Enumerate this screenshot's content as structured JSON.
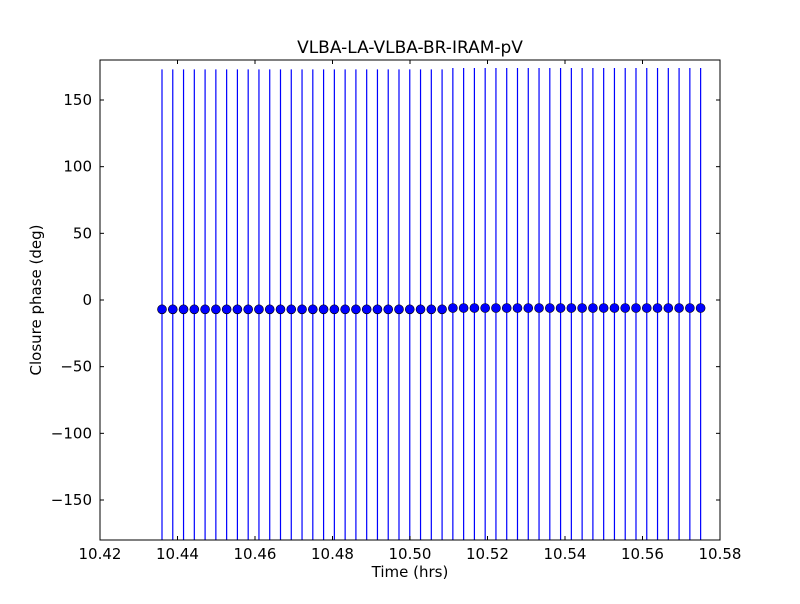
{
  "chart_data": {
    "type": "scatter",
    "title": "VLBA-LA-VLBA-BR-IRAM-pV",
    "xlabel": "Time (hrs)",
    "ylabel": "Closure phase (deg)",
    "xlim": [
      10.42,
      10.58
    ],
    "ylim": [
      -180,
      180
    ],
    "xticks": [
      "10.42",
      "10.44",
      "10.46",
      "10.48",
      "10.50",
      "10.52",
      "10.54",
      "10.56",
      "10.58"
    ],
    "yticks": [
      "−150",
      "−100",
      "−50",
      "0",
      "50",
      "100",
      "150"
    ],
    "grid": false,
    "marker_color": "#0000ff",
    "x_start": 10.436,
    "x_step": 0.00278,
    "y": [
      -7,
      -7,
      -7,
      -7,
      -7,
      -7,
      -7,
      -7,
      -7,
      -7,
      -7,
      -7,
      -7,
      -7,
      -7,
      -7,
      -7,
      -7,
      -7,
      -7,
      -7,
      -7,
      -7,
      -7,
      -7,
      -7,
      -7,
      -6,
      -6,
      -6,
      -6,
      -6,
      -6,
      -6,
      -6,
      -6,
      -6,
      -6,
      -6,
      -6,
      -6,
      -6,
      -6,
      -6,
      -6,
      -6,
      -6,
      -6,
      -6,
      -6,
      -6
    ],
    "yerr": 180
  }
}
